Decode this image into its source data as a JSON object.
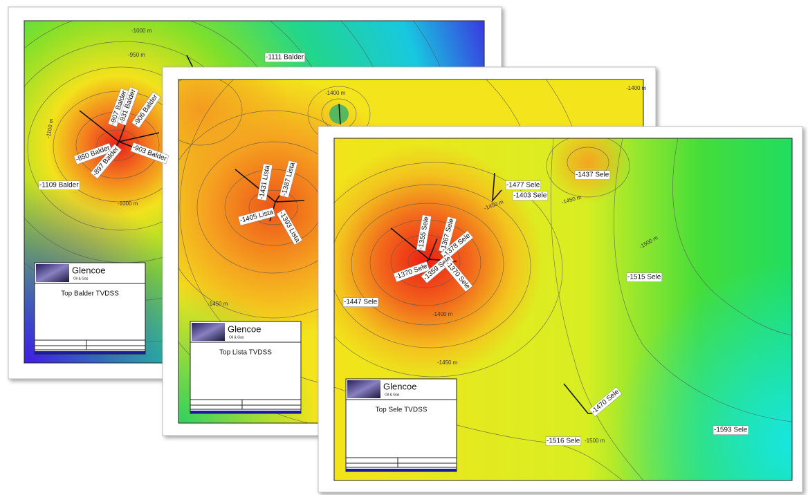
{
  "maps": [
    {
      "title": "Top Balder TVDSS",
      "logo": "Glencoe",
      "logo_sub": "Oil & Gas",
      "well_labels": [
        "-1111 Balder",
        "-907 Balder",
        "-931 Balder",
        "-906 Balder",
        "-903 Balder",
        "-850 Balder",
        "-897 Balder",
        "-1109 Balder"
      ],
      "contour_labels": [
        "-1000 m",
        "-950 m",
        "-1000 m",
        "-1100 m"
      ]
    },
    {
      "title": "Top Lista TVDSS",
      "logo": "Glencoe",
      "logo_sub": "Oil & Gas",
      "well_labels": [
        "-1431 Lista",
        "-1387 Lista",
        "-1405 Lista",
        "-1393 Lista"
      ],
      "contour_labels": [
        "-1400 m",
        "-1450 m",
        "-1400 m"
      ]
    },
    {
      "title": "Top Sele TVDSS",
      "logo": "Glencoe",
      "logo_sub": "Oil & Gas",
      "well_labels": [
        "-1477 Sele",
        "-1403 Sele",
        "-1437 Sele",
        "-1355 Sele",
        "-1367 Sele",
        "-1378 Sele",
        "-1370 Sele",
        "-1359 Sele",
        "-1370 Sele",
        "-1447 Sele",
        "-1515 Sele",
        "-1470 Sele",
        "-1516 Sele",
        "-1593 Sele"
      ],
      "contour_labels": [
        "-1450 m",
        "-1450 m",
        "-1500 m",
        "-1400 m",
        "-1450 m",
        "-1500 m"
      ]
    }
  ]
}
